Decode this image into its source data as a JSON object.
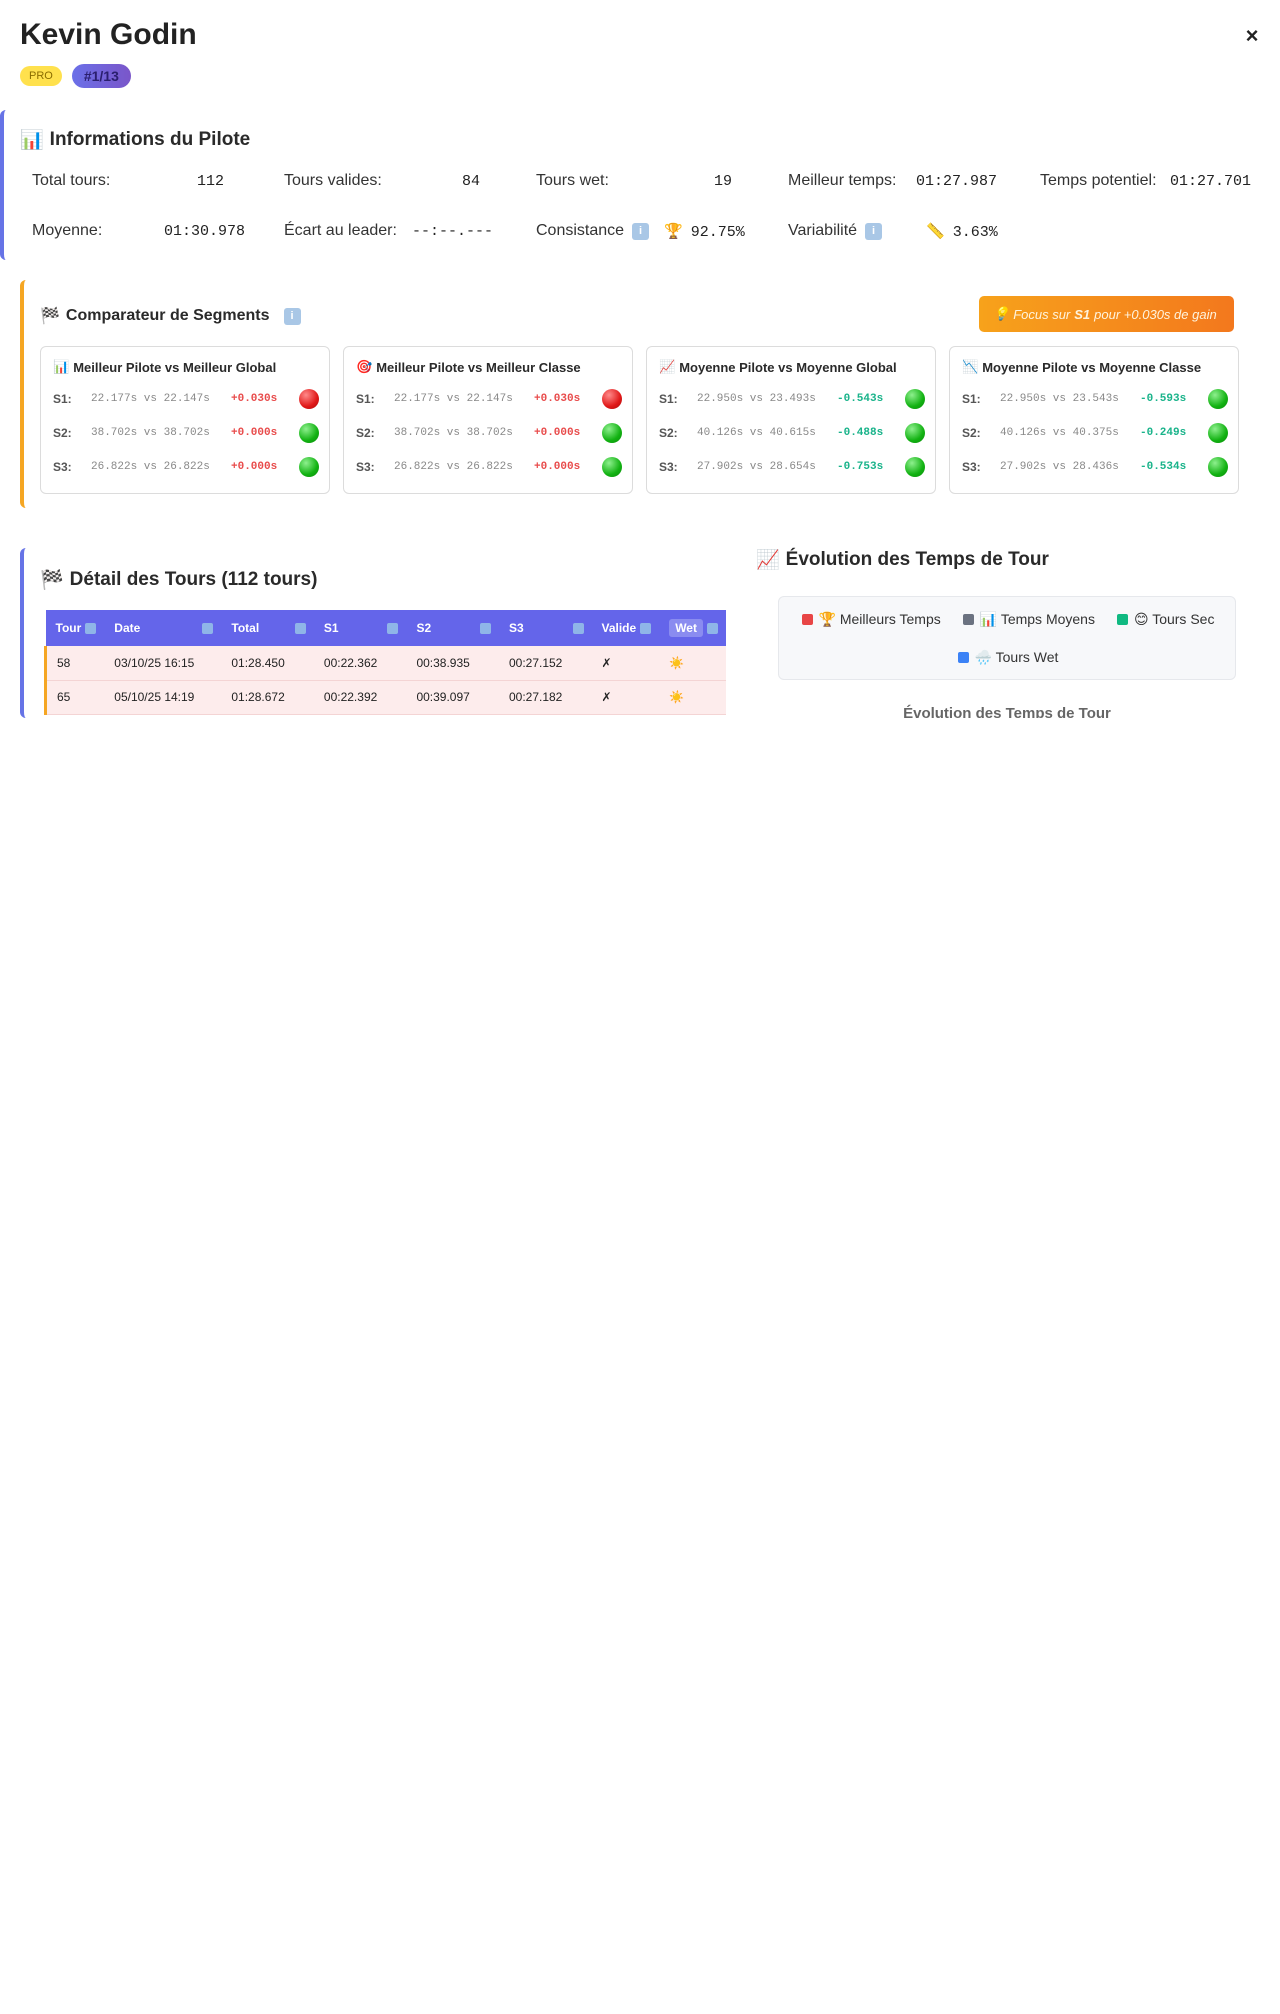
{
  "header": {
    "pilot_name": "Kevin Godin",
    "badge_pro": "PRO",
    "badge_rank": "#1/13",
    "close_label": "×"
  },
  "info": {
    "title": "Informations du Pilote",
    "icon": "bar-chart-icon",
    "items": [
      {
        "label": "Total tours:",
        "value": "112"
      },
      {
        "label": "Tours valides:",
        "value": "84"
      },
      {
        "label": "Tours wet:",
        "value": "19"
      },
      {
        "label": "Meilleur temps:",
        "value": "01:27.987"
      },
      {
        "label": "Temps potentiel:",
        "value": "01:27.701"
      },
      {
        "label": "Moyenne:",
        "value": "01:30.978"
      },
      {
        "label": "Écart au leader:",
        "value": "--:--.---"
      },
      {
        "label": "Consistance",
        "value": "92.75%",
        "prefix_icon": "🏆"
      },
      {
        "label": "Variabilité",
        "value": "3.63%",
        "prefix_icon": "📏"
      }
    ],
    "info_icon_glyph": "i"
  },
  "segments": {
    "title": "Comparateur de Segments",
    "focus": {
      "prefix": "Focus sur",
      "segment": "S1",
      "suffix": "pour +0.030s de gain",
      "icon": "💡"
    },
    "cards": [
      {
        "title": "Meilleur Pilote vs Meilleur Global",
        "icon": "📊",
        "rows": [
          {
            "label": "S1:",
            "cmp": "22.177s vs 22.147s",
            "diff": "+0.030s",
            "status": "red"
          },
          {
            "label": "S2:",
            "cmp": "38.702s vs 38.702s",
            "diff": "+0.000s",
            "status": "green"
          },
          {
            "label": "S3:",
            "cmp": "26.822s vs 26.822s",
            "diff": "+0.000s",
            "status": "green"
          }
        ]
      },
      {
        "title": "Meilleur Pilote vs Meilleur Classe",
        "icon": "🎯",
        "rows": [
          {
            "label": "S1:",
            "cmp": "22.177s vs 22.147s",
            "diff": "+0.030s",
            "status": "red"
          },
          {
            "label": "S2:",
            "cmp": "38.702s vs 38.702s",
            "diff": "+0.000s",
            "status": "green"
          },
          {
            "label": "S3:",
            "cmp": "26.822s vs 26.822s",
            "diff": "+0.000s",
            "status": "green"
          }
        ]
      },
      {
        "title": "Moyenne Pilote vs Moyenne Global",
        "icon": "📈",
        "rows": [
          {
            "label": "S1:",
            "cmp": "22.950s vs 23.493s",
            "diff": "-0.543s",
            "status": "green"
          },
          {
            "label": "S2:",
            "cmp": "40.126s vs 40.615s",
            "diff": "-0.488s",
            "status": "green"
          },
          {
            "label": "S3:",
            "cmp": "27.902s vs 28.654s",
            "diff": "-0.753s",
            "status": "green"
          }
        ]
      },
      {
        "title": "Moyenne Pilote vs Moyenne Classe",
        "icon": "📉",
        "rows": [
          {
            "label": "S1:",
            "cmp": "22.950s vs 23.543s",
            "diff": "-0.593s",
            "status": "green"
          },
          {
            "label": "S2:",
            "cmp": "40.126s vs 40.375s",
            "diff": "-0.249s",
            "status": "green"
          },
          {
            "label": "S3:",
            "cmp": "27.902s vs 28.436s",
            "diff": "-0.534s",
            "status": "green"
          }
        ]
      }
    ]
  },
  "laps": {
    "title": "Détail des Tours (112 tours)",
    "columns": [
      "Tour",
      "Date",
      "Total",
      "S1",
      "S2",
      "S3",
      "Valide",
      "Wet"
    ],
    "rows": [
      [
        "58",
        "03/10/25 16:15",
        "01:28.450",
        "00:22.362",
        "00:38.935",
        "00:27.152",
        "✗",
        "☀️"
      ],
      [
        "65",
        "05/10/25 14:19",
        "01:28.672",
        "00:22.392",
        "00:39.097",
        "00:27.182",
        "✗",
        "☀️"
      ]
    ]
  },
  "evolution": {
    "title": "Évolution des Temps de Tour",
    "icon": "📈",
    "legend": [
      {
        "label": "🏆 Meilleurs Temps",
        "color": "#e84545"
      },
      {
        "label": "📊 Temps Moyens",
        "color": "#6b7280"
      },
      {
        "label": "😊 Tours Sec",
        "color": "#10b981"
      },
      {
        "label": "🌧️ Tours Wet",
        "color": "#3b82f6"
      }
    ],
    "chart_title": "Évolution des Temps de Tour"
  }
}
